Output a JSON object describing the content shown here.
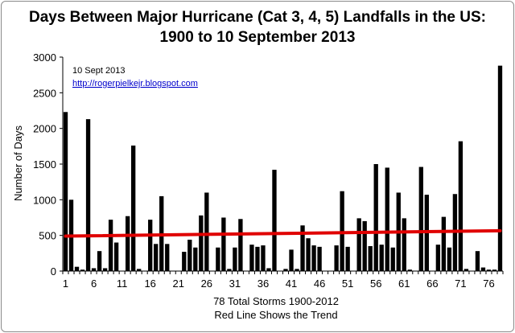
{
  "chart_data": {
    "type": "bar",
    "title_lines": [
      "Days Between Major Hurricane (Cat 3, 4, 5) Landfalls in the US:",
      "1900 to 10 September 2013"
    ],
    "ylabel": "Number of Days",
    "xlabel_lines": [
      "78 Total Storms 1900-2012",
      "Red Line Shows the Trend"
    ],
    "ylim": [
      0,
      3000
    ],
    "yticks": [
      0,
      500,
      1000,
      1500,
      2000,
      2500,
      3000
    ],
    "xtick_positions": [
      1,
      6,
      11,
      16,
      21,
      26,
      31,
      36,
      41,
      46,
      51,
      56,
      61,
      66,
      71,
      76
    ],
    "annotation": "10 Sept 2013",
    "link": "http://rogerpielkejr.blogspot.com",
    "bar_color": "#000000",
    "trend_color": "#e00000",
    "trend": {
      "start": 490,
      "end": 565
    },
    "values": [
      2230,
      1000,
      60,
      20,
      2130,
      40,
      280,
      40,
      720,
      400,
      0,
      770,
      1760,
      30,
      0,
      720,
      380,
      1050,
      380,
      0,
      0,
      270,
      440,
      330,
      780,
      1100,
      0,
      330,
      750,
      30,
      330,
      730,
      0,
      370,
      340,
      360,
      40,
      1420,
      0,
      30,
      300,
      30,
      640,
      460,
      360,
      340,
      0,
      0,
      360,
      1120,
      340,
      0,
      740,
      700,
      350,
      1500,
      370,
      1450,
      330,
      1100,
      740,
      20,
      0,
      1460,
      1070,
      0,
      370,
      760,
      330,
      1080,
      1820,
      30,
      0,
      280,
      50,
      20,
      20,
      2880
    ]
  }
}
